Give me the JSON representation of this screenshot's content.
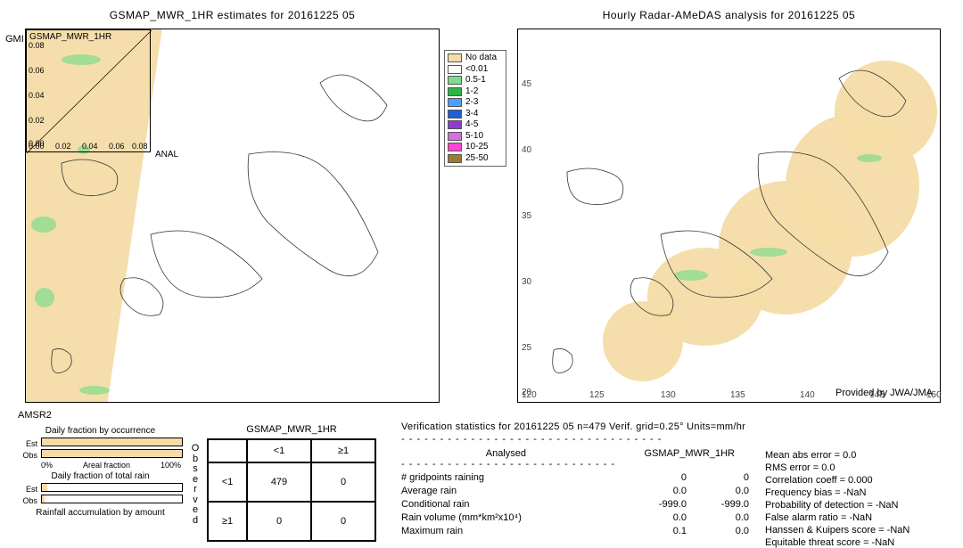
{
  "title_left": "GSMAP_MWR_1HR estimates for 20161225 05",
  "title_right": "Hourly Radar-AMeDAS analysis for 20161225 05",
  "vlabel_left": "GMI",
  "amsr2_label": "AMSR2",
  "inset_label": "GSMAP_MWR_1HR",
  "anal_label": "ANAL",
  "provided_by": "Provided by JWA/JMA",
  "left_inset_ticks_y": [
    "0.08",
    "0.06",
    "0.04",
    "0.02",
    "0.00"
  ],
  "left_inset_ticks_x": [
    "0.00",
    "0.02",
    "0.04",
    "0.06",
    "0.08"
  ],
  "right_map_xticks": [
    "120",
    "125",
    "130",
    "135",
    "140",
    "145",
    "150"
  ],
  "right_map_yticks": [
    "45",
    "40",
    "35",
    "30",
    "25",
    "20"
  ],
  "legend": {
    "items": [
      {
        "label": "No data",
        "color": "#f4dca6"
      },
      {
        "label": "<0.01",
        "color": "#ffffff"
      },
      {
        "label": "0.5-1",
        "color": "#7fdc8c"
      },
      {
        "label": "1-2",
        "color": "#2fb546"
      },
      {
        "label": "2-3",
        "color": "#4aa0ff"
      },
      {
        "label": "3-4",
        "color": "#1c5fd6"
      },
      {
        "label": "4-5",
        "color": "#8e3cd4"
      },
      {
        "label": "5-10",
        "color": "#d46fe0"
      },
      {
        "label": "10-25",
        "color": "#ff44d4"
      },
      {
        "label": "25-50",
        "color": "#9e7b2b"
      }
    ],
    "fontsize": 10
  },
  "daily_fraction": {
    "title_occurrence": "Daily fraction by occurrence",
    "title_total": "Daily fraction of total rain",
    "title_accum": "Rainfall accumulation by amount",
    "est_label": "Est",
    "obs_label": "Obs",
    "axis_lo": "0%",
    "axis_mid": "Areal fraction",
    "axis_hi": "100%",
    "est_pct": 100,
    "obs_pct": 100,
    "est_total_pct": 4,
    "obs_total_pct": 2
  },
  "observed_vertical": "Observed",
  "contingency": {
    "title": "GSMAP_MWR_1HR",
    "col_lt": "<1",
    "col_ge": "≥1",
    "row_lt": "<1",
    "row_ge": "≥1",
    "c00": "479",
    "c01": "0",
    "c10": "0",
    "c11": "0"
  },
  "verification": {
    "header": "Verification statistics for 20161225 05   n=479   Verif. grid=0.25°   Units=mm/hr",
    "dash": "- - - - - - - - - - - - - - - - - - - - - - - - - - - - - - - - - -",
    "col_analysed": "Analysed",
    "col_est": "GSMAP_MWR_1HR",
    "dash2": "- - - - - - - - - - - - - - - - - - - - - - - - - - - -",
    "rows": [
      {
        "label": "# gridpoints raining",
        "a": "0",
        "b": "0"
      },
      {
        "label": "Average rain",
        "a": "0.0",
        "b": "0.0"
      },
      {
        "label": "Conditional rain",
        "a": "-999.0",
        "b": "-999.0"
      },
      {
        "label": "Rain volume (mm*km²x10⁴)",
        "a": "0.0",
        "b": "0.0"
      },
      {
        "label": "Maximum rain",
        "a": "0.1",
        "b": "0.0"
      }
    ],
    "stats": [
      "Mean abs error = 0.0",
      "RMS error = 0.0",
      "Correlation coeff = 0.000",
      "Frequency bias = -NaN",
      "Probability of detection = -NaN",
      "False alarm ratio = -NaN",
      "Hanssen & Kuipers score = -NaN",
      "Equitable threat score = -NaN"
    ]
  },
  "colors": {
    "swath": "#f4dca6",
    "coast": "#333333",
    "bg": "#ffffff"
  }
}
